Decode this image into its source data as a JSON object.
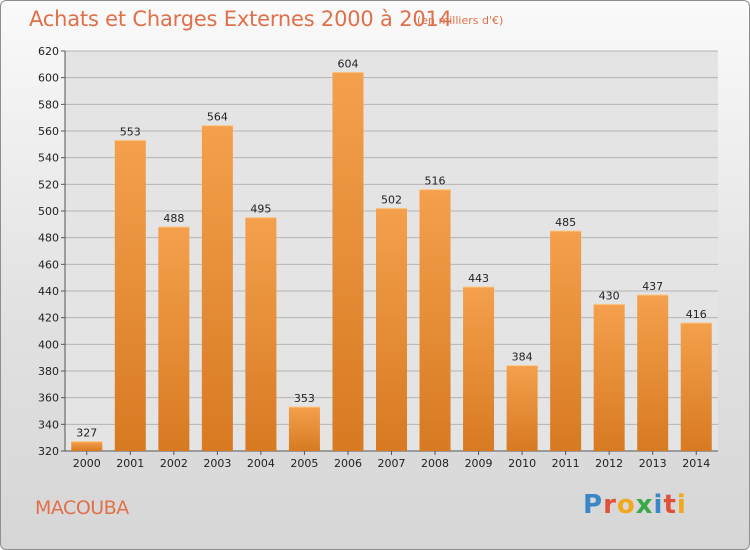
{
  "header": {
    "title": "Achats et Charges Externes 2000 à 2014",
    "unit": "(en milliers d'€)"
  },
  "footer": {
    "place": "MACOUBA",
    "logo_letters": [
      "P",
      "r",
      "o",
      "x",
      "i",
      "t",
      "i"
    ],
    "logo_colors": [
      "#3a86c8",
      "#e0513b",
      "#f2a81d",
      "#39a845",
      "#3a86c8",
      "#e0513b",
      "#f2a81d"
    ]
  },
  "chart_data": {
    "type": "bar",
    "title": "Achats et Charges Externes 2000 à 2014",
    "categories": [
      "2000",
      "2001",
      "2002",
      "2003",
      "2004",
      "2005",
      "2006",
      "2007",
      "2008",
      "2009",
      "2010",
      "2011",
      "2012",
      "2013",
      "2014"
    ],
    "values": [
      327,
      553,
      488,
      564,
      495,
      353,
      604,
      502,
      516,
      443,
      384,
      485,
      430,
      437,
      416
    ],
    "ylim": [
      320,
      620
    ],
    "yticks": [
      320,
      340,
      360,
      380,
      400,
      420,
      440,
      460,
      480,
      500,
      520,
      540,
      560,
      580,
      600,
      620
    ],
    "grid": true,
    "bar_color": "#f4a04c",
    "bar_color_dark": "#d77a22"
  }
}
